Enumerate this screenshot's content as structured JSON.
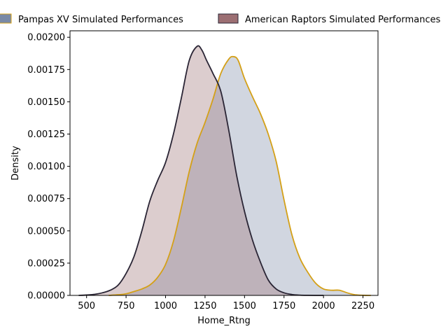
{
  "chart_data": {
    "type": "area",
    "xlabel": "Home_Rtng",
    "ylabel": "Density",
    "xlim": [
      395,
      2345
    ],
    "ylim": [
      0,
      0.00205
    ],
    "x_ticks": [
      500,
      750,
      1000,
      1250,
      1500,
      1750,
      2000,
      2250
    ],
    "x_tick_labels": [
      "500",
      "750",
      "1000",
      "1250",
      "1500",
      "1750",
      "2000",
      "2250"
    ],
    "y_ticks": [
      0,
      0.00025,
      0.0005,
      0.00075,
      0.001,
      0.00125,
      0.0015,
      0.00175,
      0.002
    ],
    "y_tick_labels": [
      "0.00000",
      "0.00025",
      "0.00050",
      "0.00075",
      "0.00100",
      "0.00125",
      "0.00150",
      "0.00175",
      "0.00200"
    ],
    "grid": false,
    "legend_position": "top",
    "series": [
      {
        "name": "Pampas XV Simulated Performances",
        "fill_color": "#7a8aa6",
        "line_color": "#d4a017",
        "x": [
          640,
          700,
          750,
          800,
          850,
          900,
          950,
          1000,
          1050,
          1100,
          1150,
          1200,
          1250,
          1300,
          1350,
          1400,
          1430,
          1460,
          1500,
          1550,
          1600,
          1650,
          1700,
          1750,
          1800,
          1850,
          1900,
          1950,
          2000,
          2050,
          2100,
          2150,
          2200,
          2250,
          2300
        ],
        "y": [
          0,
          5e-06,
          1.2e-05,
          3e-05,
          5e-05,
          8e-05,
          0.00014,
          0.00024,
          0.00042,
          0.00068,
          0.00096,
          0.00118,
          0.00134,
          0.00152,
          0.00172,
          0.00183,
          0.00185,
          0.00182,
          0.00168,
          0.00154,
          0.00141,
          0.00125,
          0.00104,
          0.00074,
          0.00047,
          0.00029,
          0.00018,
          9.5e-05,
          5e-05,
          4e-05,
          4e-05,
          2e-05,
          5e-06,
          1e-06,
          0
        ]
      },
      {
        "name": "American Raptors Simulated Performances",
        "fill_color": "#9c6f73",
        "line_color": "#2a2535",
        "x": [
          450,
          500,
          550,
          600,
          650,
          700,
          750,
          800,
          850,
          900,
          950,
          1000,
          1050,
          1100,
          1150,
          1200,
          1230,
          1260,
          1300,
          1350,
          1400,
          1450,
          1500,
          1550,
          1600,
          1650,
          1700,
          1750,
          1800,
          1850,
          1900,
          1950,
          2000
        ],
        "y": [
          0,
          3e-06,
          8e-06,
          2e-05,
          4e-05,
          8e-05,
          0.00017,
          0.0003,
          0.0005,
          0.00073,
          0.00089,
          0.00103,
          0.00125,
          0.00153,
          0.00182,
          0.00193,
          0.0019,
          0.00182,
          0.00172,
          0.00158,
          0.00128,
          0.00093,
          0.00065,
          0.00043,
          0.00026,
          0.00012,
          5e-05,
          2e-05,
          7e-06,
          2e-06,
          5e-07,
          1e-07,
          0
        ]
      }
    ]
  }
}
